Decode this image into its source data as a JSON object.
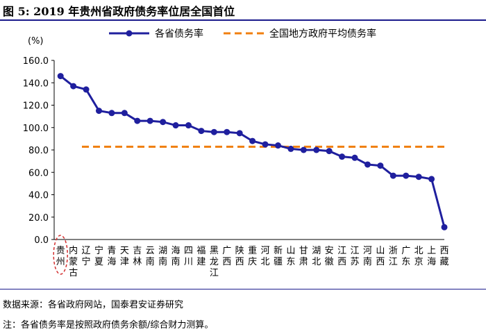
{
  "header": {
    "title": "图 5:  2019 年贵州省政府债务率位居全国首位"
  },
  "footer": {
    "source": "数据来源：各省政府网站，国泰君安证券研究",
    "note": "注：各省债务率是按照政府债务余额/综合财力测算。"
  },
  "colors": {
    "series": "#1f1f9e",
    "average": "#f07f0f",
    "highlight": "#d32f2f",
    "rule": "#1a1a8c"
  },
  "chart_data": {
    "type": "line",
    "title": "",
    "ylabel": "(%)",
    "xlabel": "",
    "ylim": [
      0,
      160
    ],
    "yticks": [
      "0.0",
      "20.0",
      "40.0",
      "60.0",
      "80.0",
      "100.0",
      "120.0",
      "140.0",
      "160.0"
    ],
    "categories": [
      "贵州",
      "内蒙古",
      "辽宁",
      "宁夏",
      "青海",
      "天津",
      "吉林",
      "云南",
      "湖南",
      "海南",
      "四川",
      "福建",
      "黑龙江",
      "广西",
      "陕西",
      "重庆",
      "河北",
      "新疆",
      "山东",
      "甘肃",
      "湖北",
      "安徽",
      "江西",
      "江苏",
      "河南",
      "山西",
      "浙江",
      "广东",
      "北京",
      "上海",
      "西藏"
    ],
    "series": [
      {
        "name": "各省债务率",
        "values": [
          146,
          137,
          134,
          115,
          113,
          113,
          106,
          106,
          105,
          102,
          102,
          97,
          96,
          96,
          95,
          88,
          85,
          84,
          81,
          80,
          80,
          79,
          74,
          73,
          67,
          66,
          57,
          57,
          56,
          54,
          11
        ]
      },
      {
        "name": "全国地方政府平均债务率",
        "style": "dashed",
        "value": 82.9
      }
    ],
    "highlight_category": "贵州",
    "grid": false,
    "legend_position": "top"
  }
}
